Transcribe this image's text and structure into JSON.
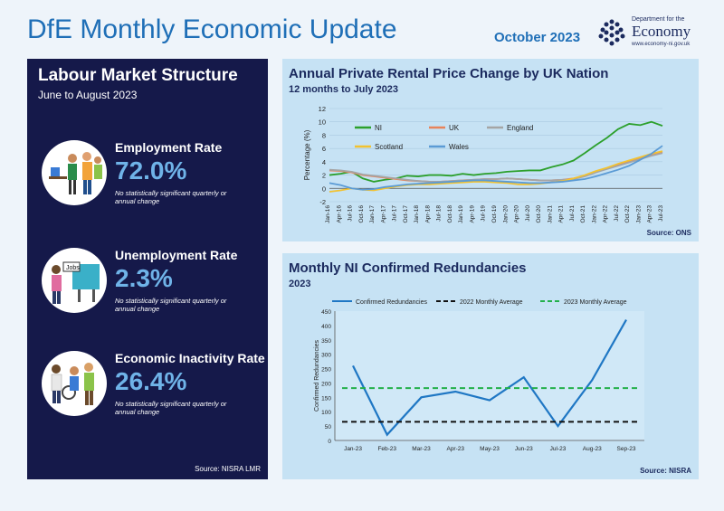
{
  "header": {
    "title": "DfE Monthly Economic Update",
    "date": "October 2023",
    "logo_small": "Department for the",
    "logo_big": "Economy",
    "logo_url": "www.economy-ni.gov.uk"
  },
  "labour": {
    "title": "Labour Market Structure",
    "subtitle": "June to August 2023",
    "stats": [
      {
        "label": "Employment Rate",
        "value": "72.0%",
        "note": "No statistically significant quarterly or annual change",
        "icon": "workers-icon"
      },
      {
        "label": "Unemployment Rate",
        "value": "2.3%",
        "note": "No statistically significant quarterly or annual change",
        "icon": "job-board-icon"
      },
      {
        "label": "Economic Inactivity Rate",
        "value": "26.4%",
        "note": "No statistically significant quarterly or annual change",
        "icon": "inactive-people-icon"
      }
    ],
    "source": "Source: NISRA LMR",
    "icon_text": "Jobs"
  },
  "rental": {
    "title": "Annual Private Rental Price Change by UK Nation",
    "subtitle": "12 months to July 2023",
    "source": "Source: ONS"
  },
  "redundancies": {
    "title": "Monthly NI Confirmed Redundancies",
    "subtitle": "2023",
    "source": "Source: NISRA"
  },
  "colors": {
    "navy": "#15194a",
    "accent": "#1f6fb7",
    "panel": "#c6e2f4",
    "value": "#6fb3e8"
  },
  "chart_data": [
    {
      "type": "line",
      "title": "Annual Private Rental Price Change by UK Nation",
      "ylabel": "Percentage (%)",
      "ylim": [
        -2,
        12
      ],
      "yticks": [
        -2,
        0,
        2,
        4,
        6,
        8,
        10,
        12
      ],
      "xticks": [
        "Jan-16",
        "Apr-16",
        "Jul-16",
        "Oct-16",
        "Jan-17",
        "Apr-17",
        "Jul-17",
        "Oct-17",
        "Jan-18",
        "Apr-18",
        "Jul-18",
        "Oct-18",
        "Jan-19",
        "Apr-19",
        "Jul-19",
        "Oct-19",
        "Jan-20",
        "Apr-20",
        "Jul-20",
        "Oct-20",
        "Jan-21",
        "Apr-21",
        "Jul-21",
        "Oct-21",
        "Jan-22",
        "Apr-22",
        "Jul-22",
        "Oct-22",
        "Jan-23",
        "Apr-23",
        "Jul-23"
      ],
      "grid": true,
      "series": [
        {
          "name": "NI",
          "color": "#2ca02c",
          "values": [
            2.0,
            2.2,
            2.5,
            1.5,
            1.0,
            1.3,
            1.5,
            1.9,
            1.8,
            2.0,
            2.0,
            1.9,
            2.2,
            2.0,
            2.2,
            2.3,
            2.5,
            2.6,
            2.7,
            2.7,
            3.2,
            3.6,
            4.2,
            5.3,
            6.5,
            7.6,
            8.9,
            9.7,
            9.5,
            10.0,
            9.4
          ]
        },
        {
          "name": "UK",
          "color": "#e8835a",
          "values": [
            2.7,
            2.6,
            2.4,
            2.0,
            1.8,
            1.6,
            1.4,
            1.2,
            1.1,
            1.0,
            1.0,
            1.1,
            1.2,
            1.3,
            1.4,
            1.4,
            1.5,
            1.4,
            1.3,
            1.2,
            1.2,
            1.3,
            1.5,
            1.9,
            2.5,
            3.0,
            3.5,
            4.0,
            4.5,
            5.0,
            5.5
          ]
        },
        {
          "name": "England",
          "color": "#a5a5a5",
          "values": [
            2.8,
            2.7,
            2.5,
            2.1,
            1.9,
            1.7,
            1.5,
            1.3,
            1.1,
            1.0,
            1.0,
            1.1,
            1.2,
            1.3,
            1.4,
            1.4,
            1.5,
            1.4,
            1.3,
            1.2,
            1.2,
            1.3,
            1.4,
            1.8,
            2.4,
            2.9,
            3.4,
            3.9,
            4.4,
            4.9,
            5.3
          ]
        },
        {
          "name": "Scotland",
          "color": "#f2c230",
          "values": [
            -0.5,
            -0.3,
            0.0,
            -0.2,
            -0.3,
            0.0,
            0.3,
            0.5,
            0.6,
            0.6,
            0.7,
            0.8,
            0.9,
            1.0,
            1.0,
            0.9,
            0.8,
            0.6,
            0.6,
            0.7,
            0.9,
            1.1,
            1.5,
            2.0,
            2.6,
            3.1,
            3.7,
            4.2,
            4.7,
            5.2,
            5.6
          ]
        },
        {
          "name": "Wales",
          "color": "#5b9bd5",
          "values": [
            0.8,
            0.5,
            0.0,
            -0.2,
            -0.1,
            0.2,
            0.4,
            0.6,
            0.7,
            0.8,
            0.9,
            1.0,
            1.1,
            1.2,
            1.2,
            1.1,
            1.0,
            0.9,
            0.8,
            0.8,
            0.9,
            1.0,
            1.2,
            1.4,
            1.8,
            2.3,
            2.8,
            3.4,
            4.3,
            5.2,
            6.4
          ]
        }
      ],
      "legend": "top-left"
    },
    {
      "type": "line",
      "title": "Monthly NI Confirmed Redundancies",
      "ylabel": "Confirmed Redundancies",
      "ylim": [
        0,
        450
      ],
      "yticks": [
        0,
        50,
        100,
        150,
        200,
        250,
        300,
        350,
        400,
        450
      ],
      "categories": [
        "Jan-23",
        "Feb-23",
        "Mar-23",
        "Apr-23",
        "May-23",
        "Jun-23",
        "Jul-23",
        "Aug-23",
        "Sep-23"
      ],
      "series": [
        {
          "name": "Confirmed Redundancies",
          "color": "#1f77c4",
          "dash": false,
          "values": [
            260,
            20,
            150,
            170,
            140,
            220,
            50,
            210,
            420
          ]
        },
        {
          "name": "2022 Monthly Average",
          "color": "#111111",
          "dash": true,
          "values": [
            65,
            65,
            65,
            65,
            65,
            65,
            65,
            65,
            65
          ]
        },
        {
          "name": "2023 Monthly Average",
          "color": "#22b04a",
          "dash": true,
          "values": [
            182,
            182,
            182,
            182,
            182,
            182,
            182,
            182,
            182
          ]
        }
      ],
      "legend": "top"
    }
  ]
}
